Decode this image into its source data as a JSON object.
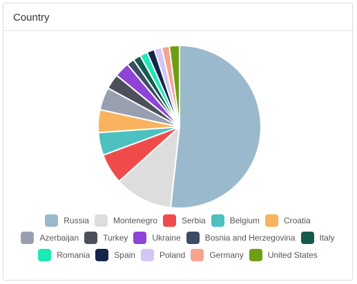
{
  "card": {
    "title": "Country"
  },
  "chart_data": {
    "type": "pie",
    "legend_position": "bottom",
    "slices": [
      {
        "label": "Russia",
        "value": 51.5,
        "color": "#9ab9cc"
      },
      {
        "label": "Montenegro",
        "value": 11.5,
        "color": "#dddddd"
      },
      {
        "label": "Serbia",
        "value": 6.0,
        "color": "#f04b4b"
      },
      {
        "label": "Belgium",
        "value": 4.5,
        "color": "#4cc1bf"
      },
      {
        "label": "Croatia",
        "value": 4.5,
        "color": "#f9b35f"
      },
      {
        "label": "Azerbaijan",
        "value": 4.5,
        "color": "#98a0b0"
      },
      {
        "label": "Turkey",
        "value": 3.0,
        "color": "#4b505c"
      },
      {
        "label": "Ukraine",
        "value": 3.0,
        "color": "#8e44d6"
      },
      {
        "label": "Bosnia and Herzegovina",
        "value": 1.5,
        "color": "#3b4c66"
      },
      {
        "label": "Italy",
        "value": 1.5,
        "color": "#135a4c"
      },
      {
        "label": "Romania",
        "value": 1.5,
        "color": "#1de9b6"
      },
      {
        "label": "Spain",
        "value": 1.5,
        "color": "#16244a"
      },
      {
        "label": "Poland",
        "value": 1.5,
        "color": "#d4c6f5"
      },
      {
        "label": "Germany",
        "value": 1.5,
        "color": "#f7a38e"
      },
      {
        "label": "United States",
        "value": 2.0,
        "color": "#6e9e12"
      }
    ]
  }
}
